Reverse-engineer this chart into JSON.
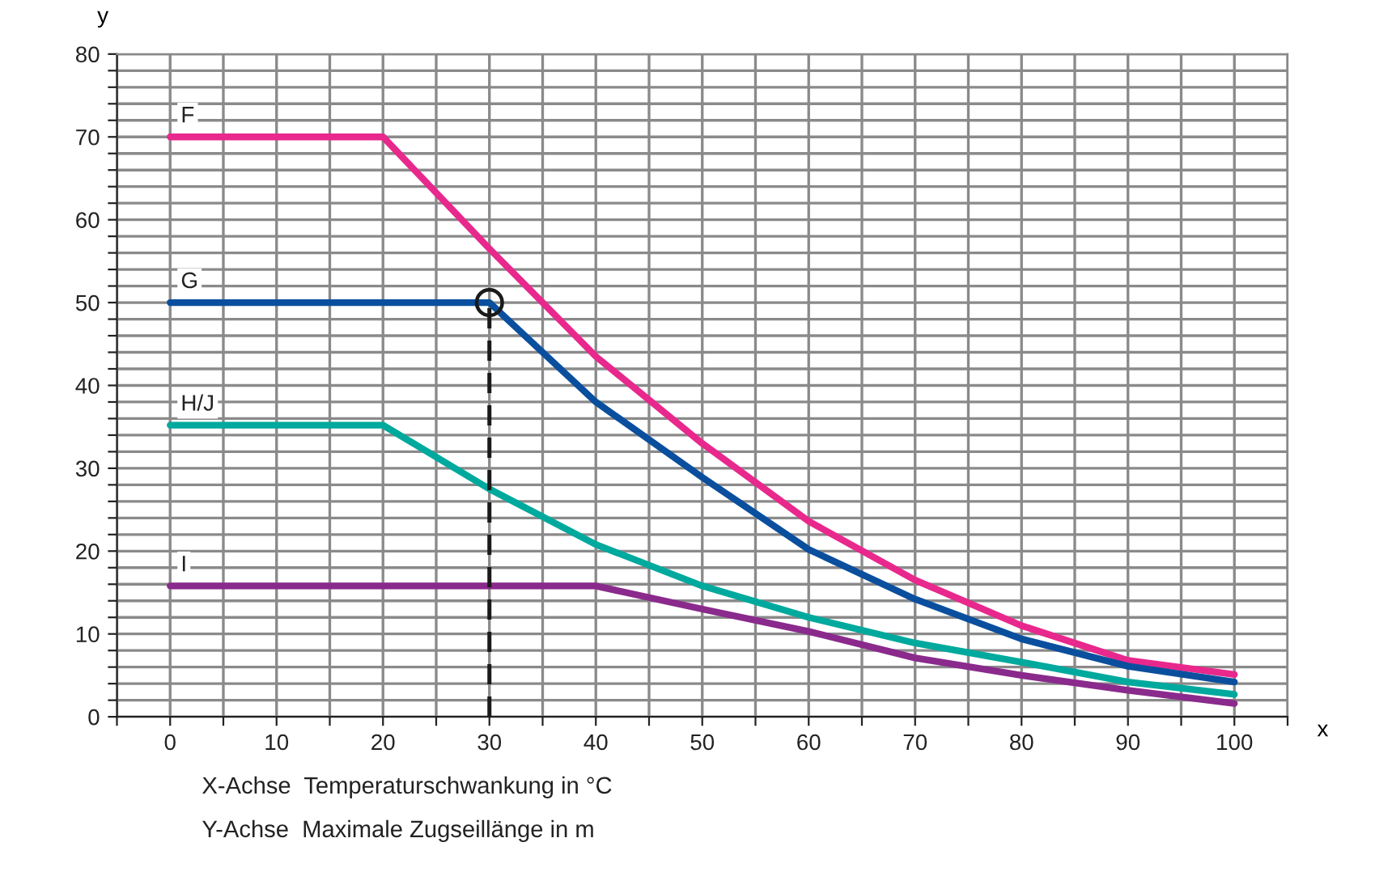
{
  "chart_data": {
    "type": "line",
    "xlabel": "x",
    "ylabel": "y",
    "x": [
      0,
      10,
      20,
      30,
      40,
      50,
      60,
      70,
      80,
      90,
      100
    ],
    "xlim": [
      -5,
      105
    ],
    "ylim": [
      0,
      80
    ],
    "xticks": [
      {
        "value": -5,
        "label": null
      },
      0,
      {
        "value": 5,
        "label": null
      },
      10,
      {
        "value": 15,
        "label": null
      },
      20,
      {
        "value": 25,
        "label": null
      },
      30,
      {
        "value": 35,
        "label": null
      },
      40,
      {
        "value": 45,
        "label": null
      },
      50,
      {
        "value": 55,
        "label": null
      },
      60,
      {
        "value": 65,
        "label": null
      },
      70,
      {
        "value": 75,
        "label": null
      },
      80,
      {
        "value": 85,
        "label": null
      },
      90,
      {
        "value": 95,
        "label": null
      },
      100,
      {
        "value": 105,
        "label": null
      }
    ],
    "yticks": [
      0,
      {
        "value": 2,
        "label": null
      },
      {
        "value": 4,
        "label": null
      },
      {
        "value": 6,
        "label": null
      },
      {
        "value": 8,
        "label": null
      },
      10,
      {
        "value": 12,
        "label": null
      },
      {
        "value": 14,
        "label": null
      },
      {
        "value": 16,
        "label": null
      },
      {
        "value": 18,
        "label": null
      },
      20,
      {
        "value": 22,
        "label": null
      },
      {
        "value": 24,
        "label": null
      },
      {
        "value": 26,
        "label": null
      },
      {
        "value": 28,
        "label": null
      },
      30,
      {
        "value": 32,
        "label": null
      },
      {
        "value": 34,
        "label": null
      },
      {
        "value": 36,
        "label": null
      },
      {
        "value": 38,
        "label": null
      },
      40,
      {
        "value": 42,
        "label": null
      },
      {
        "value": 44,
        "label": null
      },
      {
        "value": 46,
        "label": null
      },
      {
        "value": 48,
        "label": null
      },
      50,
      {
        "value": 52,
        "label": null
      },
      {
        "value": 54,
        "label": null
      },
      {
        "value": 56,
        "label": null
      },
      {
        "value": 58,
        "label": null
      },
      60,
      {
        "value": 62,
        "label": null
      },
      {
        "value": 64,
        "label": null
      },
      {
        "value": 66,
        "label": null
      },
      {
        "value": 68,
        "label": null
      },
      70,
      {
        "value": 72,
        "label": null
      },
      {
        "value": 74,
        "label": null
      },
      {
        "value": 76,
        "label": null
      },
      {
        "value": 78,
        "label": null
      },
      80
    ],
    "grid": true,
    "legend": false,
    "marker": "none",
    "line_style": "solid",
    "series": [
      {
        "name": "F",
        "color": "#e8288c",
        "values": [
          70,
          70,
          70,
          56.5,
          43.5,
          33,
          23.6,
          16.5,
          11,
          6.8,
          5.1
        ]
      },
      {
        "name": "G",
        "color": "#0a4f9e",
        "values": [
          50,
          50,
          50,
          50,
          38,
          28.9,
          20.2,
          14.2,
          9.4,
          6.1,
          4.2
        ]
      },
      {
        "name": "H/J",
        "color": "#00a99d",
        "values": [
          35.2,
          35.2,
          35.2,
          27.5,
          20.8,
          15.8,
          12,
          8.9,
          6.6,
          4.2,
          2.7
        ]
      },
      {
        "name": "I",
        "color": "#8a2a8c",
        "values": [
          15.8,
          15.8,
          15.8,
          15.8,
          15.8,
          13,
          10.3,
          7.1,
          5,
          3.2,
          1.6
        ]
      },
      {
        "type": "line",
        "x": [
          30,
          30
        ],
        "values": [
          0,
          50
        ],
        "color": "#1a1a1a",
        "line_style": "dashed"
      },
      {
        "type": "scatter",
        "values": [
          null,
          null,
          null,
          50,
          null,
          null,
          null,
          null,
          null,
          null,
          null
        ],
        "color": "#1a1a1a",
        "marker": "circle"
      }
    ],
    "annotations": [
      "X-Achse  Temperaturschwankung in °C",
      "Y-Achse  Maximale Zugseillänge in m"
    ]
  }
}
